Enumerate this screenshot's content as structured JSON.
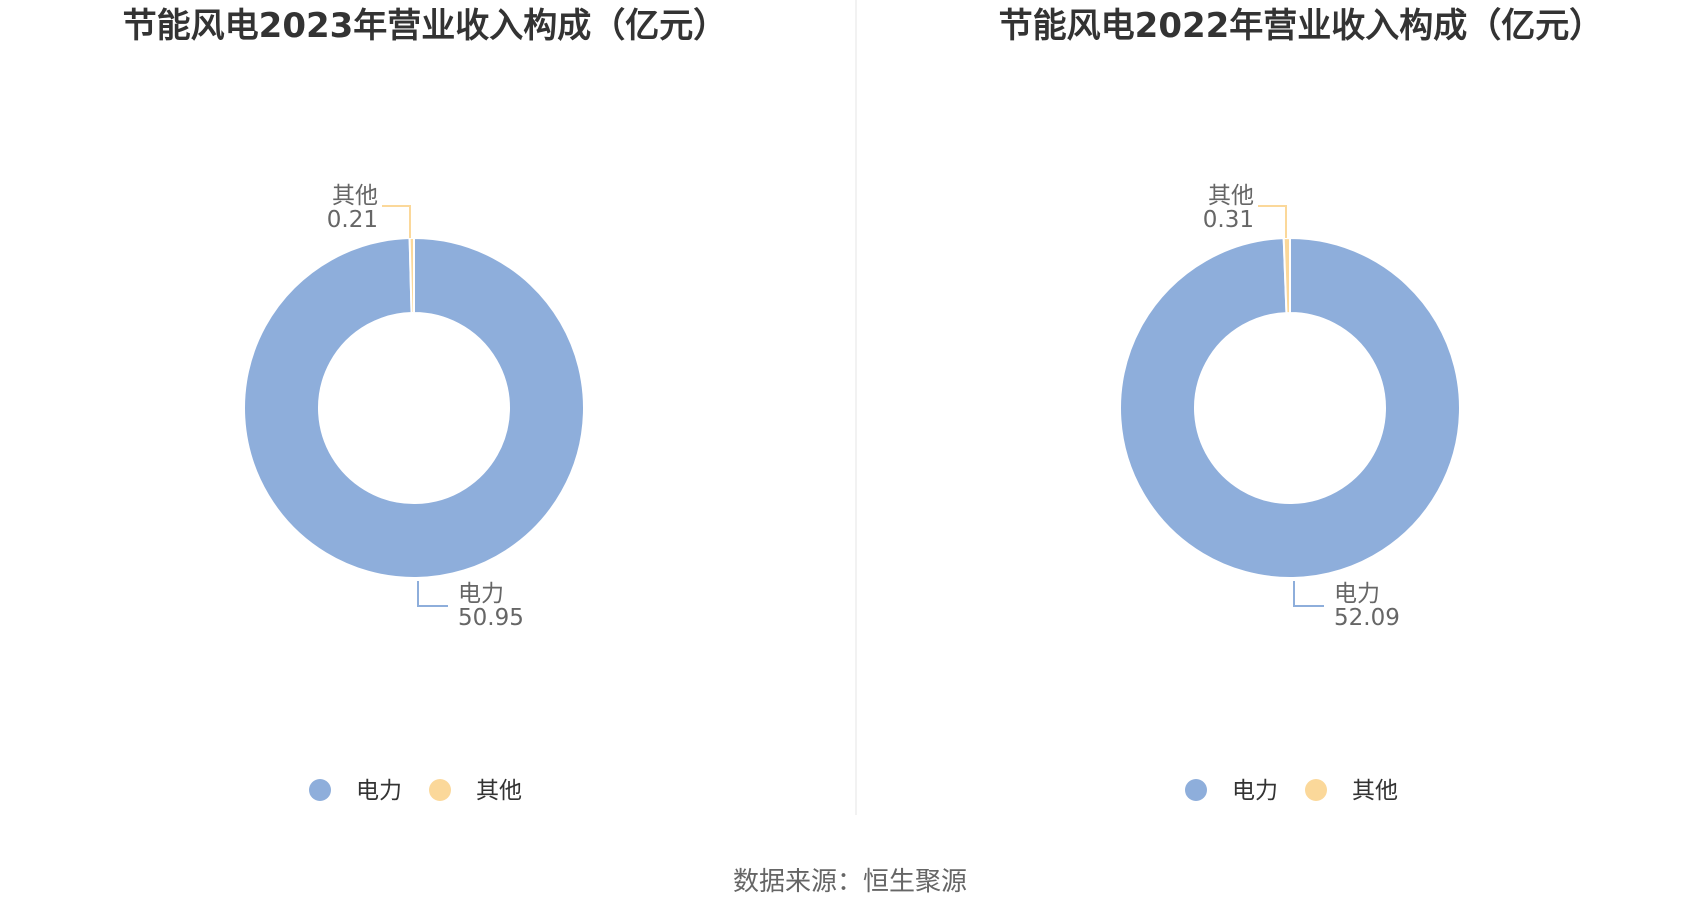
{
  "source": "数据来源：恒生聚源",
  "colors": {
    "电力": "#8eaedb",
    "其他": "#fbd89a"
  },
  "chart_data": [
    {
      "type": "pie",
      "donut": true,
      "title": "节能风电2023年营业收入构成（亿元）",
      "slices": [
        {
          "name": "电力",
          "value": 50.95,
          "label": "50.95"
        },
        {
          "name": "其他",
          "value": 0.21,
          "label": "0.21"
        }
      ],
      "legend": [
        "电力",
        "其他"
      ],
      "legend_position": "bottom"
    },
    {
      "type": "pie",
      "donut": true,
      "title": "节能风电2022年营业收入构成（亿元）",
      "slices": [
        {
          "name": "电力",
          "value": 52.09,
          "label": "52.09"
        },
        {
          "name": "其他",
          "value": 0.31,
          "label": "0.31"
        }
      ],
      "legend": [
        "电力",
        "其他"
      ],
      "legend_position": "bottom"
    }
  ]
}
